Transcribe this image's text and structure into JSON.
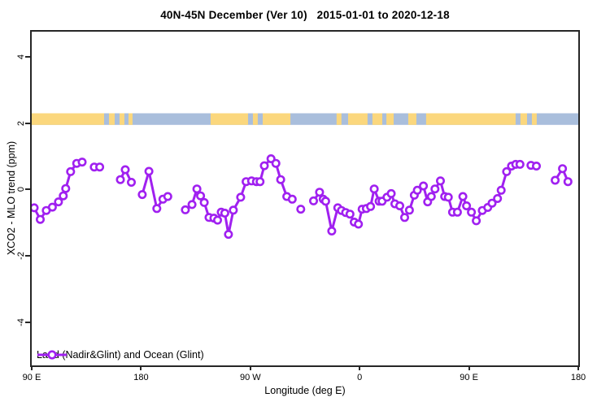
{
  "title": "40N-45N December (Ver 10)   2015-01-01 to 2020-12-18",
  "legend": {
    "label": "Land (Nadir&Glint) and Ocean (Glint)"
  },
  "chart_data": {
    "type": "line",
    "title": "40N-45N December (Ver 10)   2015-01-01 to 2020-12-18",
    "xlabel": "Longitude (deg E)",
    "ylabel": "XCO2 - MLO trend (ppm)",
    "xlim": [
      90,
      540
    ],
    "ylim": [
      -5.3,
      4.76
    ],
    "grid": false,
    "legend_position": "bottom-left",
    "x_ticks": [
      {
        "lon": 90,
        "label": "90 E"
      },
      {
        "lon": 180,
        "label": "180"
      },
      {
        "lon": 270,
        "label": "90 W"
      },
      {
        "lon": 360,
        "label": "0"
      },
      {
        "lon": 450,
        "label": "90 E"
      },
      {
        "lon": 540,
        "label": "180"
      }
    ],
    "y_ticks": [
      -4,
      -2,
      0,
      2,
      4
    ],
    "line_color": "#A020F0",
    "marker": "open-circle",
    "series_name": "Land (Nadir&Glint) and Ocean (Glint)",
    "segments": [
      [
        [
          92,
          -0.55
        ],
        [
          97,
          -0.9
        ],
        [
          102,
          -0.63
        ],
        [
          107,
          -0.53
        ],
        [
          112,
          -0.37
        ],
        [
          116,
          -0.19
        ],
        [
          118,
          0.03
        ],
        [
          122,
          0.54
        ],
        [
          127,
          0.79
        ],
        [
          131.5,
          0.83
        ]
      ],
      [
        [
          141.5,
          0.68
        ],
        [
          146,
          0.68
        ]
      ],
      [
        [
          163,
          0.3
        ],
        [
          167,
          0.6
        ],
        [
          172,
          0.22
        ]
      ],
      [
        [
          181,
          -0.15
        ],
        [
          186.5,
          0.55
        ],
        [
          193,
          -0.57
        ],
        [
          198,
          -0.29
        ],
        [
          202,
          -0.21
        ]
      ],
      [
        [
          216.5,
          -0.61
        ],
        [
          222,
          -0.45
        ],
        [
          226,
          0.02
        ],
        [
          229,
          -0.19
        ],
        [
          232,
          -0.39
        ],
        [
          236,
          -0.84
        ],
        [
          240,
          -0.86
        ],
        [
          243,
          -0.92
        ],
        [
          246,
          -0.68
        ],
        [
          249,
          -0.71
        ],
        [
          252,
          -1.35
        ],
        [
          256,
          -0.62
        ],
        [
          262,
          -0.23
        ],
        [
          266.5,
          0.24
        ],
        [
          271,
          0.26
        ],
        [
          275,
          0.24
        ],
        [
          278,
          0.24
        ],
        [
          281.5,
          0.72
        ],
        [
          287,
          0.93
        ],
        [
          291,
          0.79
        ],
        [
          295,
          0.3
        ],
        [
          300,
          -0.21
        ],
        [
          304.5,
          -0.29
        ]
      ],
      [
        [
          311.5,
          -0.59
        ]
      ],
      [
        [
          322,
          -0.34
        ],
        [
          327,
          -0.08
        ],
        [
          330,
          -0.29
        ],
        [
          332,
          -0.35
        ],
        [
          337,
          -1.25
        ],
        [
          342,
          -0.55
        ],
        [
          345,
          -0.63
        ],
        [
          348.5,
          -0.69
        ],
        [
          352,
          -0.74
        ],
        [
          355.5,
          -0.98
        ],
        [
          359,
          -1.04
        ],
        [
          362,
          -0.59
        ],
        [
          365.5,
          -0.57
        ],
        [
          369,
          -0.51
        ],
        [
          372,
          0.02
        ],
        [
          376,
          -0.35
        ],
        [
          378.5,
          -0.35
        ],
        [
          382.5,
          -0.23
        ],
        [
          386,
          -0.12
        ],
        [
          389,
          -0.43
        ],
        [
          393,
          -0.49
        ],
        [
          397,
          -0.84
        ],
        [
          401,
          -0.62
        ],
        [
          405,
          -0.17
        ],
        [
          407.5,
          -0.02
        ],
        [
          412.5,
          0.11
        ],
        [
          416,
          -0.37
        ],
        [
          419,
          -0.21
        ],
        [
          422,
          0.02
        ],
        [
          426.5,
          0.26
        ],
        [
          430,
          -0.21
        ],
        [
          433,
          -0.23
        ],
        [
          436.5,
          -0.68
        ],
        [
          440.5,
          -0.68
        ],
        [
          445,
          -0.21
        ],
        [
          448,
          -0.49
        ],
        [
          452,
          -0.68
        ],
        [
          456,
          -0.94
        ],
        [
          461,
          -0.63
        ],
        [
          465.5,
          -0.54
        ],
        [
          469,
          -0.41
        ],
        [
          473.5,
          -0.27
        ],
        [
          476.5,
          -0.02
        ],
        [
          481,
          0.54
        ],
        [
          485,
          0.71
        ],
        [
          488.5,
          0.76
        ],
        [
          492,
          0.76
        ]
      ],
      [
        [
          501,
          0.73
        ],
        [
          505.5,
          0.71
        ]
      ],
      [
        [
          521,
          0.28
        ],
        [
          527,
          0.63
        ],
        [
          531.5,
          0.24
        ]
      ]
    ],
    "map_band": {
      "description": "land-ocean strip of 40N-45N latitude band drawn along longitude axis",
      "value_range": [
        1.95,
        2.3
      ],
      "ocean_color": "#A9BEDC",
      "land_color": "#FBD77D",
      "land_segments_lon": [
        [
          90,
          149.6
        ],
        [
          153.6,
          158.3
        ],
        [
          162.3,
          166.3
        ],
        [
          169.7,
          173
        ],
        [
          237.3,
          268.1
        ],
        [
          272.1,
          276.1
        ],
        [
          280.2,
          303
        ],
        [
          341,
          345
        ],
        [
          350.5,
          366.5
        ],
        [
          370.5,
          378.6
        ],
        [
          382,
          388
        ],
        [
          400,
          406.7
        ],
        [
          414.7,
          488.4
        ],
        [
          492.4,
          497.8
        ],
        [
          501.8,
          505.8
        ]
      ]
    }
  }
}
